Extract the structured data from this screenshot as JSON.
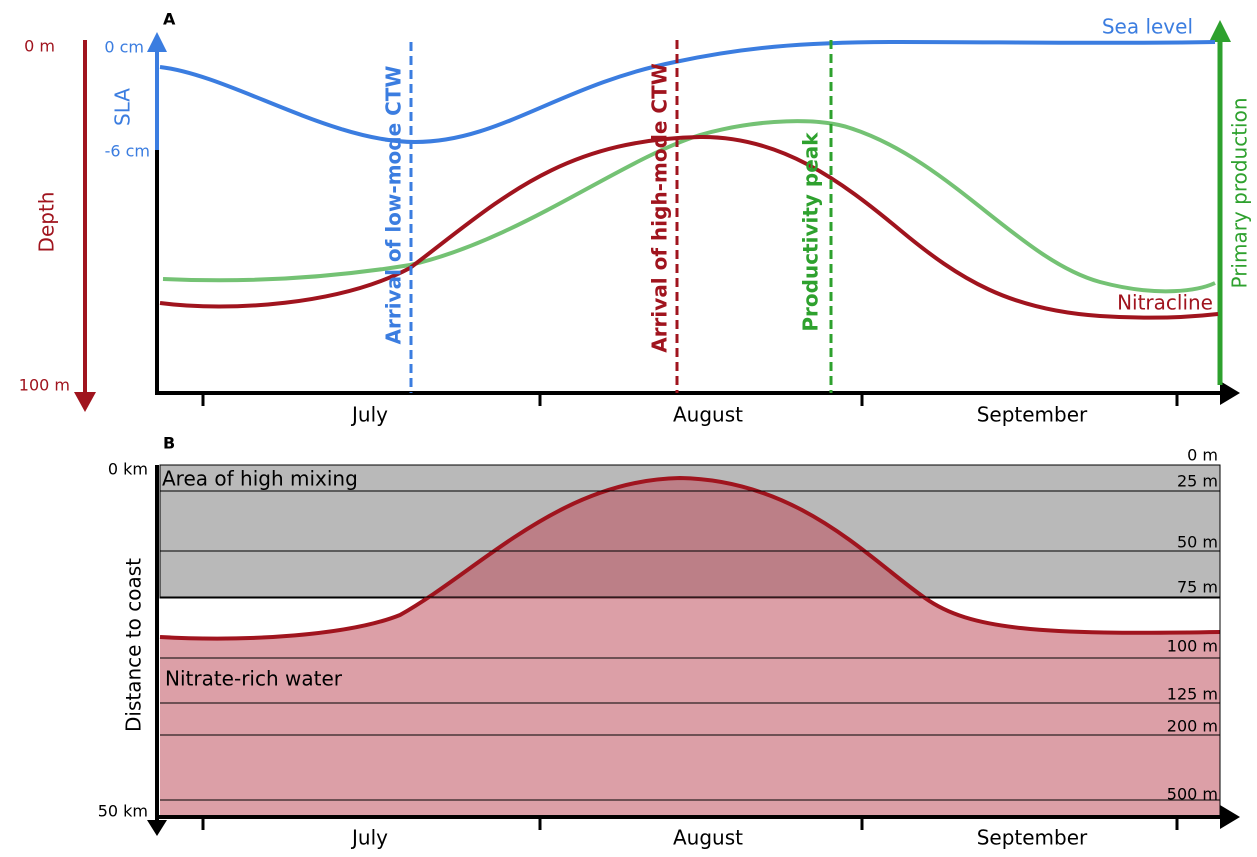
{
  "panel_a": {
    "label": "A",
    "depth_axis": {
      "title": "Depth",
      "top": "0 m",
      "bottom": "100 m"
    },
    "sla_axis": {
      "title": "SLA",
      "top": "0 cm",
      "bottom": "-6 cm"
    },
    "production_axis": {
      "title": "Primary production"
    },
    "curves": {
      "sea_level": "Sea level",
      "nitracline": "Nitracline"
    },
    "events": [
      "Arrival of low-mode CTW",
      "Arrival of high-mode CTW",
      "Productivity peak"
    ],
    "months": [
      "July",
      "August",
      "September"
    ]
  },
  "panel_b": {
    "label": "B",
    "axis_title": "Distance to coast",
    "top": "0 km",
    "bottom": "50 km",
    "regions": [
      "Area of high mixing",
      "Nitrate-rich water"
    ],
    "depths": [
      "0 m",
      "25 m",
      "50 m",
      "75 m",
      "100 m",
      "125 m",
      "200 m",
      "500 m"
    ],
    "months": [
      "July",
      "August",
      "September"
    ]
  }
}
